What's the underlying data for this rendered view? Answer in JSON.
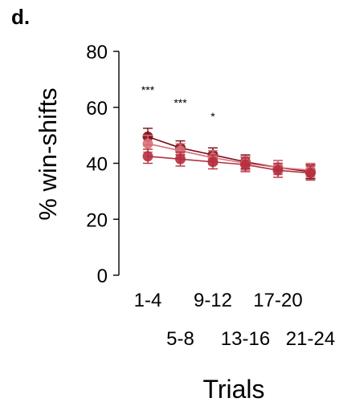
{
  "panel_label": "d.",
  "chart_data": {
    "type": "line",
    "xlabel": "Trials",
    "ylabel": "% win-shifts",
    "categories": [
      "1-4",
      "5-8",
      "9-12",
      "13-16",
      "17-20",
      "21-24"
    ],
    "ylim": [
      0,
      80
    ],
    "yticks": [
      0,
      20,
      40,
      60,
      80
    ],
    "grid": false,
    "legend": "none",
    "significance": [
      {
        "category": "1-4",
        "label": "***"
      },
      {
        "category": "5-8",
        "label": "***"
      },
      {
        "category": "9-12",
        "label": "*"
      }
    ],
    "series": [
      {
        "color": "#7a0d16",
        "values": [
          49.5,
          45.5,
          43,
          40.5,
          38.5,
          37
        ],
        "errors": [
          3,
          2.5,
          2.5,
          2.5,
          2.5,
          2.5
        ]
      },
      {
        "color": "#d9707a",
        "values": [
          47,
          44.5,
          42,
          40,
          38.5,
          37.5
        ],
        "errors": [
          3,
          2.5,
          2.5,
          2.5,
          2.5,
          2.5
        ]
      },
      {
        "color": "#b52f3e",
        "values": [
          42.5,
          41.5,
          40.5,
          39.5,
          37.5,
          36.5
        ],
        "errors": [
          2.5,
          2.5,
          2.5,
          2.5,
          2.5,
          2.5
        ]
      }
    ]
  }
}
